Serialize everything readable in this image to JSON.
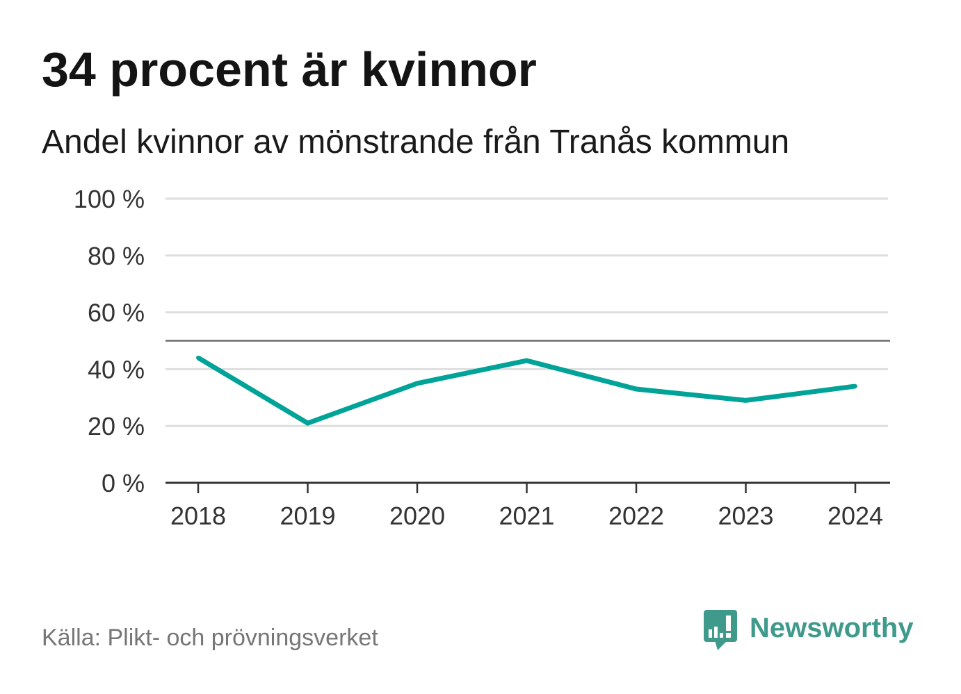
{
  "title": "34 procent är kvinnor",
  "subtitle": "Andel kvinnor av mönstrande från Tranås kommun",
  "source": "Källa: Plikt- och prövningsverket",
  "logo": {
    "text": "Newsworthy",
    "icon": "newsworthy-logo-icon"
  },
  "colors": {
    "title": "#141414",
    "subtitle": "#1a1a1a",
    "line": "#00a398",
    "reference_line": "#6b6b6b",
    "grid": "#dedede",
    "axis": "#333333",
    "tick_label": "#333333",
    "source": "#767676",
    "logo": "#3f9a8c"
  },
  "chart_data": {
    "type": "line",
    "x": [
      "2018",
      "2019",
      "2020",
      "2021",
      "2022",
      "2023",
      "2024"
    ],
    "series": [
      {
        "values": [
          44,
          21,
          35,
          43,
          33,
          29,
          34
        ]
      }
    ],
    "ylim": [
      0,
      100
    ],
    "yticks": [
      0,
      20,
      40,
      60,
      80,
      100
    ],
    "ytick_labels": [
      "0 %",
      "20 %",
      "40 %",
      "60 %",
      "80 %",
      "100 %"
    ],
    "reference_line": 50,
    "grid": true,
    "legend": "none",
    "xlabel": "",
    "ylabel": ""
  }
}
